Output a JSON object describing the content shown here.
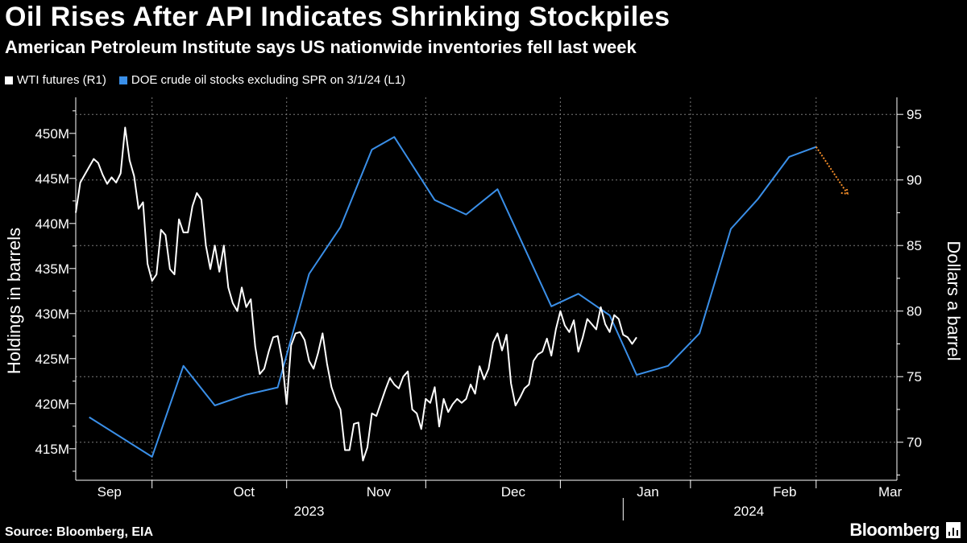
{
  "title": "Oil Rises After API Indicates Shrinking Stockpiles",
  "subtitle": "American Petroleum Institute says US nationwide inventories fell last week",
  "source": "Source: Bloomberg, EIA",
  "brand": "Bloomberg",
  "colors": {
    "background": "#000000",
    "wti": "#ffffff",
    "doe": "#3a8fe8",
    "projection": "#f28c28",
    "grid": "#7a7a7a"
  },
  "legend": [
    {
      "label": "WTI futures (R1)",
      "color": "#ffffff"
    },
    {
      "label": "DOE crude oil stocks excluding SPR on 3/1/24 (L1)",
      "color": "#3a8fe8"
    }
  ],
  "chart_data": {
    "type": "line",
    "title": "Oil Rises After API Indicates Shrinking Stockpiles",
    "left_axis": {
      "label": "Holdings in barrels",
      "range": [
        411.5,
        454
      ],
      "ticks": [
        415,
        420,
        425,
        430,
        435,
        440,
        445,
        450
      ],
      "tick_labels": [
        "415M",
        "420M",
        "425M",
        "430M",
        "435M",
        "440M",
        "445M",
        "450M"
      ]
    },
    "right_axis": {
      "label": "Dollars a barrel",
      "range": [
        67.1,
        96.3
      ],
      "ticks": [
        70,
        75,
        80,
        85,
        90,
        95
      ],
      "tick_labels": [
        "70",
        "75",
        "80",
        "85",
        "90",
        "95"
      ]
    },
    "x_axis": {
      "range": [
        0,
        183
      ],
      "months": [
        {
          "label": "Sep",
          "pos": 7.5
        },
        {
          "label": "Oct",
          "pos": 37.5
        },
        {
          "label": "Nov",
          "pos": 67.5
        },
        {
          "label": "Dec",
          "pos": 97.5
        },
        {
          "label": "Jan",
          "pos": 127.5
        },
        {
          "label": "Feb",
          "pos": 158
        },
        {
          "label": "Mar",
          "pos": 181.5
        }
      ],
      "month_boundaries": [
        17,
        47,
        78,
        108,
        137,
        165
      ],
      "years": [
        {
          "label": "2023",
          "pos": 52
        },
        {
          "label": "2024",
          "pos": 150
        }
      ],
      "year_boundary": 122
    },
    "series": [
      {
        "name": "DOE crude oil stocks excluding SPR on 3/1/24",
        "axis": "left",
        "points": [
          [
            3,
            418.5
          ],
          [
            17,
            414.1
          ],
          [
            24,
            424.2
          ],
          [
            31,
            419.8
          ],
          [
            38,
            421.0
          ],
          [
            45,
            421.8
          ],
          [
            52,
            434.4
          ],
          [
            59,
            439.6
          ],
          [
            66,
            448.2
          ],
          [
            71,
            449.6
          ],
          [
            80,
            442.6
          ],
          [
            87,
            441.0
          ],
          [
            94,
            443.8
          ],
          [
            106,
            430.8
          ],
          [
            112,
            432.2
          ],
          [
            119,
            429.8
          ],
          [
            125,
            423.2
          ],
          [
            132,
            424.2
          ],
          [
            139,
            427.8
          ],
          [
            146,
            439.4
          ],
          [
            152,
            442.7
          ],
          [
            159,
            447.4
          ],
          [
            165,
            448.5
          ]
        ]
      },
      {
        "name": "DOE crude projection",
        "axis": "left",
        "style": "dotted",
        "points": [
          [
            165,
            448.5
          ],
          [
            172,
            443.3
          ]
        ]
      },
      {
        "name": "WTI futures",
        "axis": "right",
        "points": [
          [
            0,
            87.5
          ],
          [
            1,
            89.8
          ],
          [
            3,
            91.0
          ],
          [
            4,
            91.6
          ],
          [
            5,
            91.3
          ],
          [
            6,
            90.4
          ],
          [
            7,
            89.7
          ],
          [
            8,
            90.2
          ],
          [
            9,
            89.8
          ],
          [
            10,
            90.5
          ],
          [
            11,
            94.0
          ],
          [
            12,
            91.5
          ],
          [
            13,
            90.3
          ],
          [
            14,
            87.8
          ],
          [
            15,
            88.3
          ],
          [
            16,
            83.6
          ],
          [
            17,
            82.3
          ],
          [
            18,
            82.8
          ],
          [
            19,
            86.2
          ],
          [
            20,
            85.8
          ],
          [
            21,
            83.2
          ],
          [
            22,
            82.8
          ],
          [
            23,
            87.0
          ],
          [
            24,
            86.0
          ],
          [
            25,
            86.0
          ],
          [
            26,
            88.0
          ],
          [
            27,
            89.0
          ],
          [
            28,
            88.5
          ],
          [
            29,
            85.0
          ],
          [
            30,
            83.2
          ],
          [
            31,
            85.0
          ],
          [
            32,
            83.0
          ],
          [
            33,
            85.0
          ],
          [
            34,
            81.8
          ],
          [
            35,
            80.6
          ],
          [
            36,
            80.0
          ],
          [
            37,
            81.8
          ],
          [
            38,
            80.3
          ],
          [
            39,
            80.9
          ],
          [
            40,
            77.3
          ],
          [
            41,
            75.2
          ],
          [
            42,
            75.6
          ],
          [
            43,
            76.9
          ],
          [
            44,
            78.0
          ],
          [
            45,
            78.1
          ],
          [
            46,
            76.3
          ],
          [
            47,
            72.9
          ],
          [
            48,
            77.4
          ],
          [
            49,
            78.3
          ],
          [
            50,
            78.4
          ],
          [
            51,
            77.8
          ],
          [
            52,
            76.2
          ],
          [
            53,
            75.6
          ],
          [
            54,
            76.8
          ],
          [
            55,
            78.3
          ],
          [
            56,
            76.0
          ],
          [
            57,
            74.2
          ],
          [
            58,
            73.2
          ],
          [
            59,
            72.5
          ],
          [
            60,
            69.4
          ],
          [
            61,
            69.4
          ],
          [
            62,
            71.4
          ],
          [
            63,
            71.5
          ],
          [
            64,
            68.6
          ],
          [
            65,
            69.6
          ],
          [
            66,
            72.2
          ],
          [
            67,
            72.0
          ],
          [
            68,
            73.0
          ],
          [
            69,
            74.0
          ],
          [
            70,
            74.9
          ],
          [
            71,
            74.4
          ],
          [
            72,
            74.1
          ],
          [
            73,
            75.0
          ],
          [
            74,
            75.4
          ],
          [
            75,
            72.5
          ],
          [
            76,
            72.2
          ],
          [
            77,
            71.0
          ],
          [
            78,
            73.3
          ],
          [
            79,
            73.0
          ],
          [
            80,
            74.2
          ],
          [
            81,
            71.2
          ],
          [
            82,
            73.3
          ],
          [
            83,
            72.3
          ],
          [
            84,
            72.9
          ],
          [
            85,
            73.3
          ],
          [
            86,
            73.0
          ],
          [
            87,
            73.3
          ],
          [
            88,
            74.4
          ],
          [
            89,
            73.7
          ],
          [
            90,
            75.8
          ],
          [
            91,
            74.8
          ],
          [
            92,
            75.6
          ],
          [
            93,
            77.6
          ],
          [
            94,
            78.3
          ],
          [
            95,
            77.0
          ],
          [
            96,
            78.2
          ],
          [
            97,
            74.5
          ],
          [
            98,
            72.8
          ],
          [
            99,
            73.4
          ],
          [
            100,
            74.1
          ],
          [
            101,
            74.4
          ],
          [
            102,
            76.2
          ],
          [
            103,
            76.7
          ],
          [
            104,
            76.9
          ],
          [
            105,
            77.9
          ],
          [
            106,
            76.6
          ],
          [
            107,
            78.6
          ],
          [
            108,
            80.0
          ],
          [
            109,
            78.9
          ],
          [
            110,
            78.4
          ],
          [
            111,
            79.3
          ],
          [
            112,
            76.9
          ],
          [
            113,
            78.0
          ],
          [
            114,
            79.4
          ],
          [
            115,
            79.0
          ],
          [
            116,
            78.6
          ],
          [
            117,
            80.3
          ],
          [
            118,
            79.0
          ],
          [
            119,
            78.4
          ],
          [
            120,
            79.7
          ],
          [
            121,
            79.4
          ],
          [
            122,
            78.2
          ],
          [
            123,
            78.0
          ],
          [
            124,
            77.5
          ],
          [
            125,
            78.0
          ]
        ]
      }
    ]
  }
}
